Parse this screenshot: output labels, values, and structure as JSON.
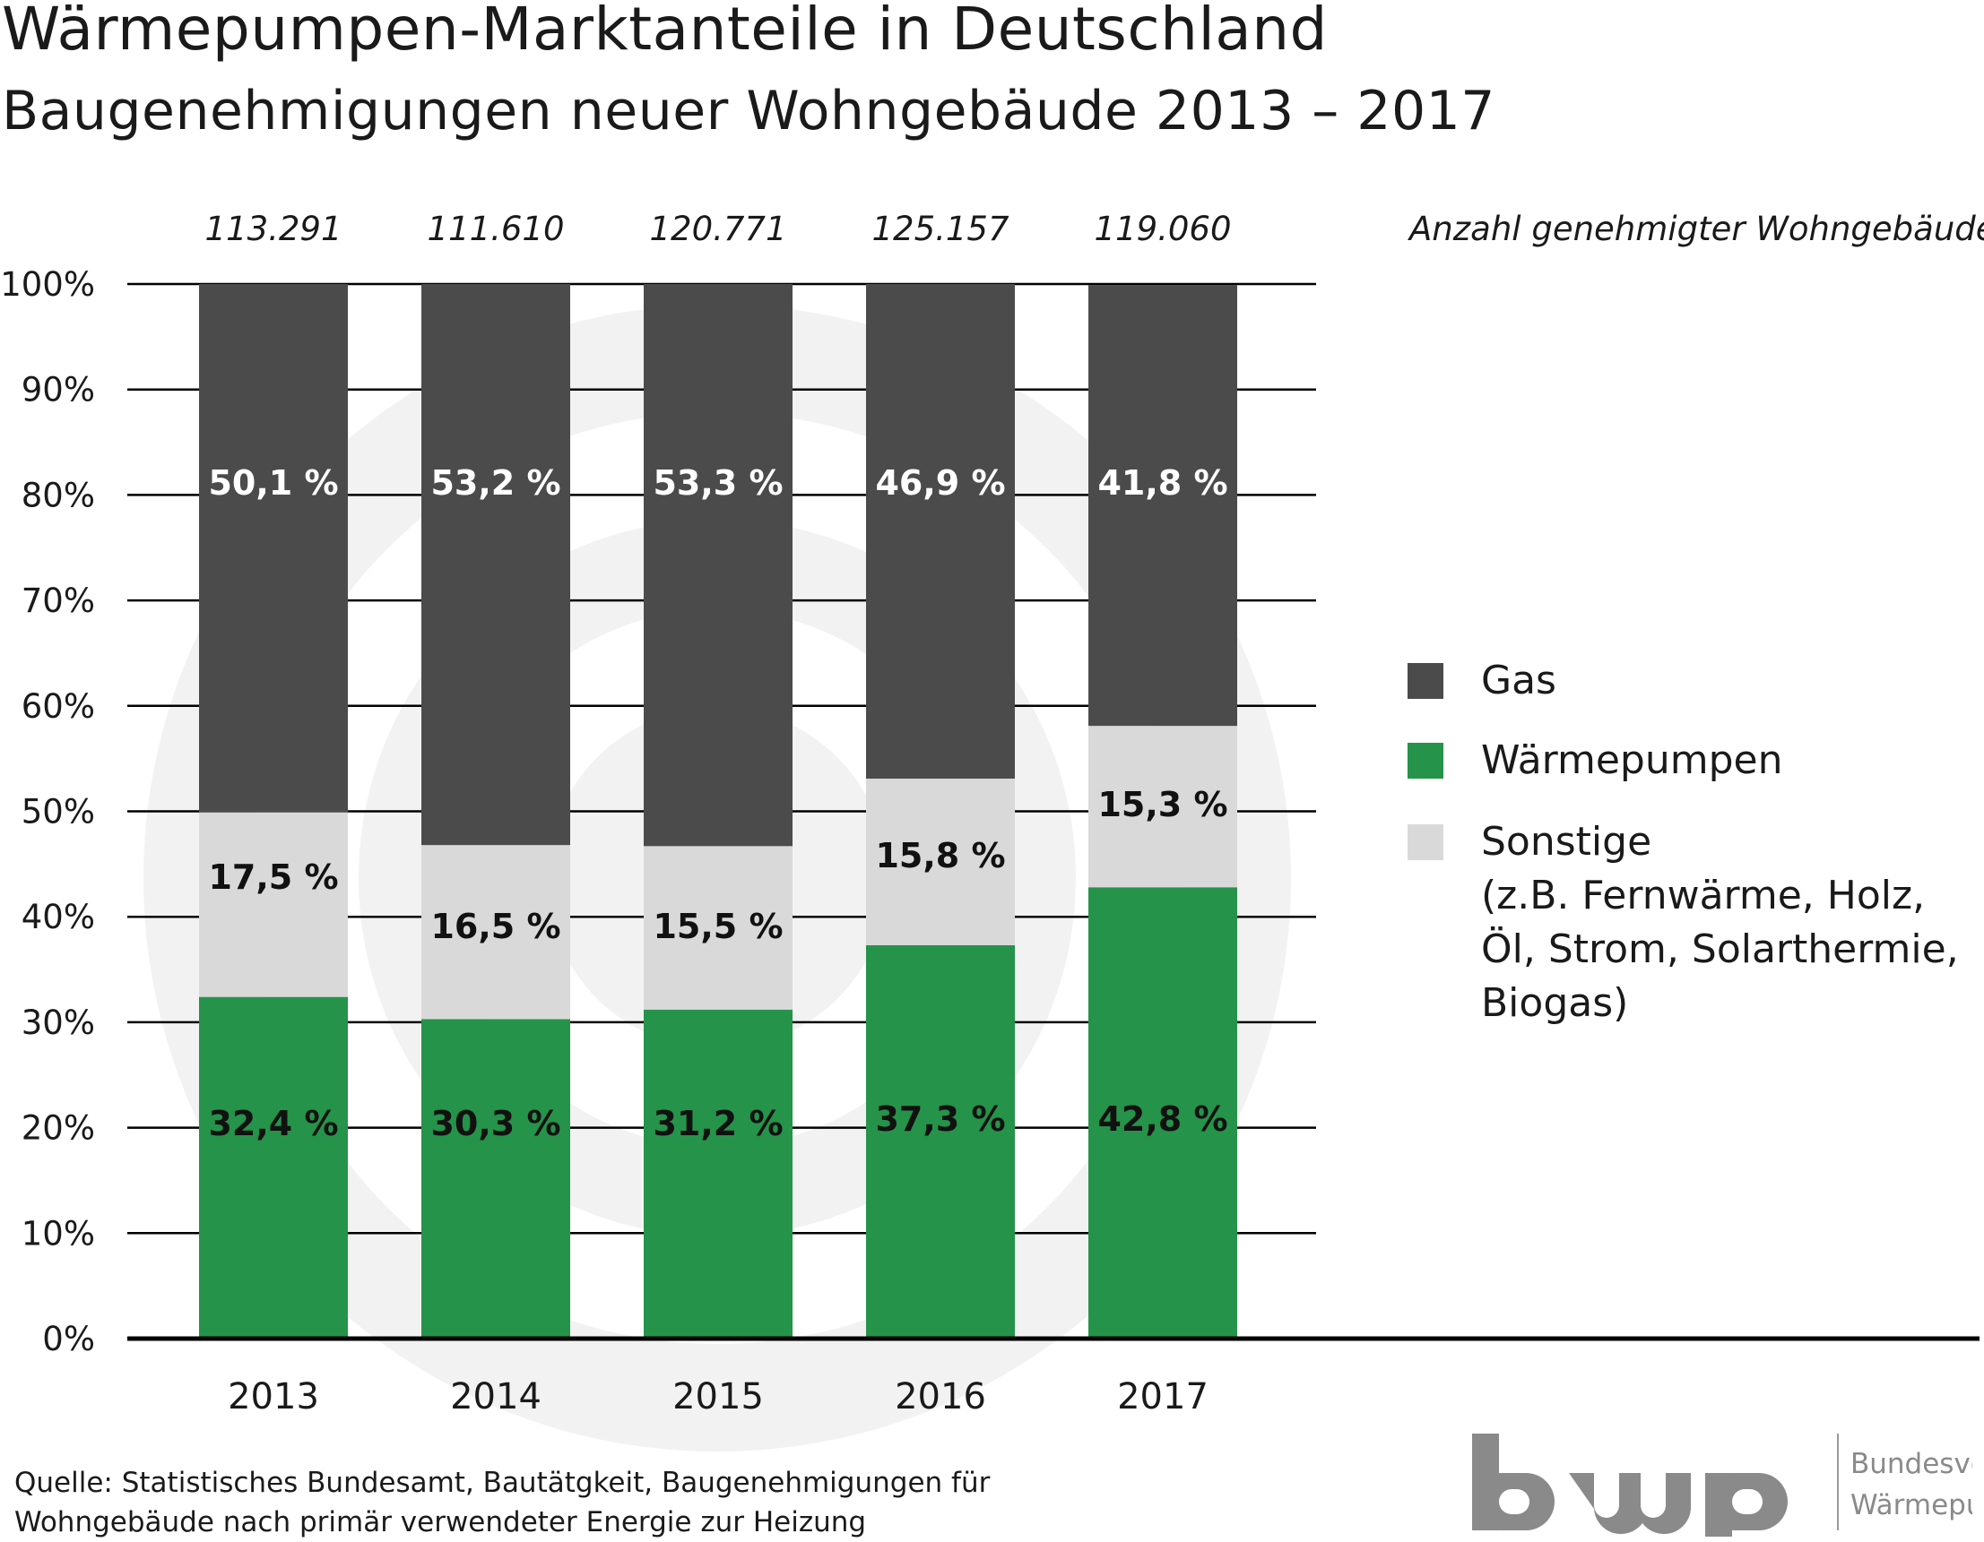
{
  "title": "Wärmepumpen-Marktanteile in Deutschland",
  "subtitle": "Baugenehmigungen neuer Wohngebäude 2013 – 2017",
  "count_label": "Anzahl genehmigter Wohngebäude",
  "chart_data": {
    "type": "bar",
    "stacked": true,
    "title": "Wärmepumpen-Marktanteile in Deutschland",
    "subtitle": "Baugenehmigungen neuer Wohngebäude 2013 – 2017",
    "categories": [
      "2013",
      "2014",
      "2015",
      "2016",
      "2017"
    ],
    "counts": [
      "113.291",
      "111.610",
      "120.771",
      "125.157",
      "119.060"
    ],
    "yticks": [
      "0%",
      "10%",
      "20%",
      "30%",
      "40%",
      "50%",
      "60%",
      "70%",
      "80%",
      "90%",
      "100%"
    ],
    "ylim": [
      0,
      100
    ],
    "grid": true,
    "legend_position": "right",
    "series": [
      {
        "name": "Wärmepumpen",
        "color": "#25934a",
        "label_color": "#111111",
        "values": [
          32.4,
          30.3,
          31.2,
          37.3,
          42.8
        ],
        "labels": [
          "32,4 %",
          "30,3 %",
          "31,2 %",
          "37,3 %",
          "42,8 %"
        ]
      },
      {
        "name": "Sonstige",
        "color": "#d9d9d9",
        "label_color": "#111111",
        "values": [
          17.5,
          16.5,
          15.5,
          15.8,
          15.3
        ],
        "labels": [
          "17,5 %",
          "16,5 %",
          "15,5 %",
          "15,8 %",
          "15,3 %"
        ]
      },
      {
        "name": "Gas",
        "color": "#4b4b4b",
        "label_color": "#ffffff",
        "values": [
          50.1,
          53.2,
          53.3,
          46.9,
          41.8
        ],
        "labels": [
          "50,1 %",
          "53,2 %",
          "53,3 %",
          "46,9 %",
          "41,8 %"
        ]
      }
    ]
  },
  "legend": [
    {
      "label_lines": [
        "Gas"
      ],
      "color": "#4b4b4b"
    },
    {
      "label_lines": [
        "Wärmepumpen"
      ],
      "color": "#25934a"
    },
    {
      "label_lines": [
        "Sonstige",
        "(z.B. Fernwärme, Holz,",
        "Öl, Strom, Solarthermie,",
        "Biogas)"
      ],
      "color": "#d9d9d9"
    }
  ],
  "source": "Quelle: Statistisches Bundesamt, Bautätgkeit, Baugenehmigungen für Wohngebäude nach primär verwendeter Energie zur Heizung",
  "logo": {
    "letters": "bwp",
    "line1": "Bundesverband",
    "line2": "Wärmepumpe e.V.",
    "color": "#8a8a8a"
  }
}
